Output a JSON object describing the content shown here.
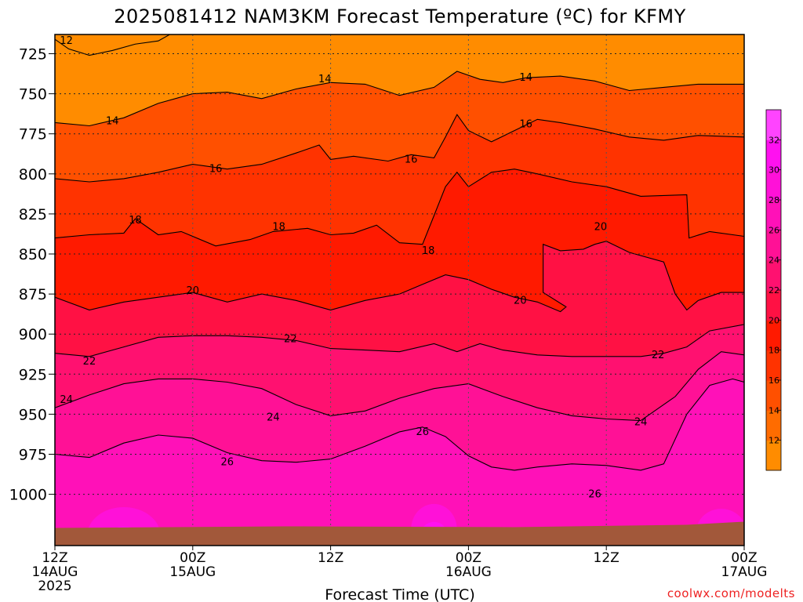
{
  "title": "2025081412 NAM3KM Forecast Temperature (ºC) for KFMY",
  "xlabel": "Forecast Time (UTC)",
  "credit": "coolwx.com/modelts",
  "chart_data": {
    "type": "heatmap",
    "title": "2025081412 NAM3KM Forecast Temperature (ºC) for KFMY",
    "xlabel": "Forecast Time (UTC)",
    "ylabel": "",
    "x_ticks": [
      {
        "t": 0,
        "label": [
          "12Z",
          "14AUG",
          "2025"
        ]
      },
      {
        "t": 12,
        "label": [
          "00Z",
          "15AUG"
        ]
      },
      {
        "t": 24,
        "label": [
          "12Z"
        ]
      },
      {
        "t": 36,
        "label": [
          "00Z",
          "16AUG"
        ]
      },
      {
        "t": 48,
        "label": [
          "12Z"
        ]
      },
      {
        "t": 60,
        "label": [
          "00Z",
          "17AUG"
        ]
      }
    ],
    "xlim": [
      0,
      60
    ],
    "y_ticks": [
      725,
      750,
      775,
      800,
      825,
      850,
      875,
      900,
      925,
      950,
      975,
      1000
    ],
    "ylim": [
      713,
      1032
    ],
    "y_inverted": true,
    "grid": true,
    "colorbar_levels": [
      12,
      14,
      16,
      18,
      20,
      22,
      24,
      26,
      28,
      30,
      32
    ],
    "colorbar_colors": [
      "#ff8c00",
      "#ff6c00",
      "#ff5000",
      "#ff3300",
      "#ff1a00",
      "#ff1144",
      "#ff1170",
      "#ff1196",
      "#ff11b8",
      "#ff11d8",
      "#ff11f0",
      "#ff44ff"
    ],
    "contours": [
      {
        "level": 12,
        "labels": [
          {
            "t": 1.0,
            "p": 717
          }
        ]
      },
      {
        "level": 14,
        "points": [
          [
            0,
            768
          ],
          [
            3,
            770
          ],
          [
            6,
            765
          ],
          [
            9,
            756
          ],
          [
            12,
            750
          ],
          [
            15,
            749
          ],
          [
            18,
            753
          ],
          [
            21,
            747
          ],
          [
            24,
            743
          ],
          [
            27,
            744
          ],
          [
            30,
            751
          ],
          [
            33,
            746
          ],
          [
            35,
            736
          ],
          [
            37,
            741
          ],
          [
            39,
            743
          ],
          [
            41,
            740
          ],
          [
            44,
            739
          ],
          [
            47,
            742
          ],
          [
            50,
            748
          ],
          [
            53,
            746
          ],
          [
            56,
            744
          ],
          [
            60,
            744
          ]
        ],
        "labels": [
          {
            "t": 5,
            "p": 767
          },
          {
            "t": 23.5,
            "p": 741
          },
          {
            "t": 41,
            "p": 740
          }
        ]
      },
      {
        "level": 16,
        "points": [
          [
            0,
            803
          ],
          [
            3,
            805
          ],
          [
            6,
            803
          ],
          [
            9,
            799
          ],
          [
            12,
            794
          ],
          [
            15,
            797
          ],
          [
            18,
            794
          ],
          [
            21,
            787
          ],
          [
            23,
            782
          ],
          [
            24,
            791
          ],
          [
            26,
            789
          ],
          [
            29,
            792
          ],
          [
            31,
            788
          ],
          [
            33,
            790
          ],
          [
            34,
            777
          ],
          [
            35,
            763
          ],
          [
            36,
            773
          ],
          [
            38,
            780
          ],
          [
            40,
            773
          ],
          [
            42,
            766
          ],
          [
            44,
            768
          ],
          [
            47,
            772
          ],
          [
            50,
            777
          ],
          [
            53,
            779
          ],
          [
            56,
            776
          ],
          [
            60,
            777
          ]
        ],
        "labels": [
          {
            "t": 14,
            "p": 797
          },
          {
            "t": 31,
            "p": 791
          },
          {
            "t": 41,
            "p": 769
          }
        ]
      },
      {
        "level": 18,
        "points": [
          [
            0,
            840
          ],
          [
            3,
            838
          ],
          [
            6,
            837
          ],
          [
            7,
            828
          ],
          [
            9,
            838
          ],
          [
            11,
            836
          ],
          [
            14,
            845
          ],
          [
            17,
            841
          ],
          [
            19,
            836
          ],
          [
            22,
            834
          ],
          [
            24,
            838
          ],
          [
            26,
            837
          ],
          [
            28,
            832
          ],
          [
            30,
            843
          ],
          [
            32,
            844
          ],
          [
            33,
            826
          ],
          [
            34,
            808
          ],
          [
            35,
            799
          ],
          [
            36,
            808
          ],
          [
            38,
            799
          ],
          [
            40,
            797
          ],
          [
            42,
            800
          ],
          [
            45,
            805
          ],
          [
            48,
            808
          ],
          [
            51,
            814
          ],
          [
            55,
            813
          ],
          [
            55.2,
            840
          ],
          [
            57,
            836
          ],
          [
            60,
            839
          ]
        ],
        "labels": [
          {
            "t": 7,
            "p": 829
          },
          {
            "t": 19.5,
            "p": 833
          },
          {
            "t": 32.5,
            "p": 848
          }
        ]
      },
      {
        "level": 20,
        "points": [
          [
            0,
            877
          ],
          [
            3,
            885
          ],
          [
            6,
            880
          ],
          [
            9,
            877
          ],
          [
            12,
            874
          ],
          [
            15,
            880
          ],
          [
            18,
            875
          ],
          [
            21,
            879
          ],
          [
            24,
            885
          ],
          [
            27,
            879
          ],
          [
            30,
            875
          ],
          [
            32,
            869
          ],
          [
            34,
            863
          ],
          [
            36,
            866
          ],
          [
            38,
            872
          ],
          [
            40,
            877
          ],
          [
            42,
            880
          ],
          [
            44,
            886
          ],
          [
            44.5,
            883
          ],
          [
            42.5,
            874
          ],
          [
            42.5,
            850
          ],
          [
            42.5,
            844
          ],
          [
            44,
            848
          ],
          [
            46,
            847
          ],
          [
            47,
            844
          ],
          [
            48,
            842
          ],
          [
            50,
            849
          ],
          [
            53,
            855
          ],
          [
            54,
            875
          ],
          [
            55,
            885
          ],
          [
            56,
            879
          ],
          [
            58,
            874
          ],
          [
            60,
            874
          ]
        ],
        "labels": [
          {
            "t": 12,
            "p": 873
          },
          {
            "t": 40.5,
            "p": 879
          },
          {
            "t": 47.5,
            "p": 833
          }
        ]
      },
      {
        "level": 22,
        "points": [
          [
            0,
            912
          ],
          [
            3,
            914
          ],
          [
            6,
            908
          ],
          [
            9,
            902
          ],
          [
            12,
            901
          ],
          [
            15,
            901
          ],
          [
            18,
            902
          ],
          [
            21,
            904
          ],
          [
            24,
            909
          ],
          [
            27,
            910
          ],
          [
            30,
            911
          ],
          [
            33,
            906
          ],
          [
            35,
            911
          ],
          [
            37,
            906
          ],
          [
            39,
            910
          ],
          [
            42,
            913
          ],
          [
            45,
            914
          ],
          [
            48,
            914
          ],
          [
            51,
            914
          ],
          [
            53,
            912
          ],
          [
            55,
            908
          ],
          [
            57,
            898
          ],
          [
            60,
            894
          ]
        ],
        "labels": [
          {
            "t": 3,
            "p": 917
          },
          {
            "t": 20.5,
            "p": 903
          },
          {
            "t": 52.5,
            "p": 913
          }
        ]
      },
      {
        "level": 24,
        "points": [
          [
            0,
            946
          ],
          [
            3,
            938
          ],
          [
            6,
            931
          ],
          [
            9,
            928
          ],
          [
            12,
            928
          ],
          [
            15,
            930
          ],
          [
            18,
            934
          ],
          [
            21,
            944
          ],
          [
            24,
            951
          ],
          [
            27,
            948
          ],
          [
            30,
            940
          ],
          [
            33,
            934
          ],
          [
            36,
            931
          ],
          [
            39,
            939
          ],
          [
            42,
            946
          ],
          [
            45,
            951
          ],
          [
            48,
            953
          ],
          [
            51,
            954
          ],
          [
            54,
            939
          ],
          [
            56,
            922
          ],
          [
            58,
            911
          ],
          [
            60,
            913
          ]
        ],
        "labels": [
          {
            "t": 1,
            "p": 941
          },
          {
            "t": 19,
            "p": 952
          },
          {
            "t": 51,
            "p": 955
          }
        ]
      },
      {
        "level": 26,
        "points": [
          [
            0,
            975
          ],
          [
            3,
            977
          ],
          [
            6,
            968
          ],
          [
            9,
            963
          ],
          [
            12,
            965
          ],
          [
            15,
            974
          ],
          [
            18,
            979
          ],
          [
            21,
            980
          ],
          [
            24,
            978
          ],
          [
            27,
            970
          ],
          [
            30,
            961
          ],
          [
            32,
            958
          ],
          [
            34,
            964
          ],
          [
            36,
            976
          ],
          [
            38,
            983
          ],
          [
            40,
            985
          ],
          [
            42,
            983
          ],
          [
            45,
            981
          ],
          [
            48,
            982
          ],
          [
            51,
            985
          ],
          [
            53,
            981
          ],
          [
            55,
            950
          ],
          [
            57,
            932
          ],
          [
            59,
            928
          ],
          [
            60,
            930
          ]
        ],
        "labels": [
          {
            "t": 15,
            "p": 980
          },
          {
            "t": 32,
            "p": 961
          },
          {
            "t": 47,
            "p": 1000
          }
        ]
      }
    ],
    "ground_pressure": 1020
  }
}
